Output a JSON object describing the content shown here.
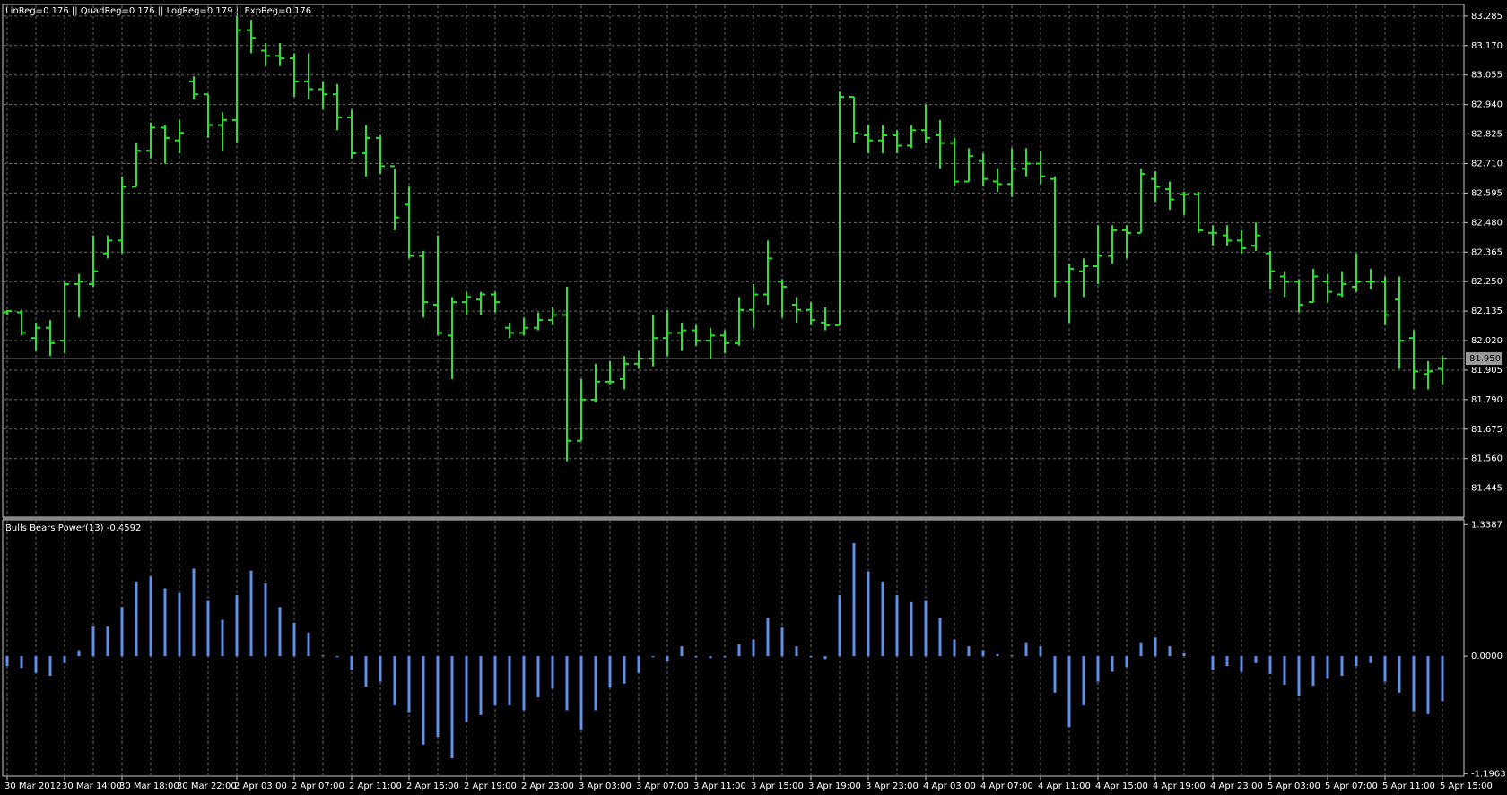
{
  "chart_data": [
    {
      "type": "ohlc",
      "title": "LinReg=0.176 || QuadReg=0.176 || LogReg=0.179 || ExpReg=0.176",
      "categories": [
        "30 Mar 2012",
        null,
        null,
        null,
        "30 Mar 14:00",
        null,
        null,
        null,
        "30 Mar 18:00",
        null,
        null,
        null,
        "30 Mar 22:00",
        null,
        null,
        null,
        "2 Apr 03:00",
        null,
        null,
        null,
        "2 Apr 07:00",
        null,
        null,
        null,
        "2 Apr 11:00",
        null,
        null,
        null,
        "2 Apr 15:00",
        null,
        null,
        null,
        "2 Apr 19:00",
        null,
        null,
        null,
        "2 Apr 23:00",
        null,
        null,
        null,
        "3 Apr 03:00",
        null,
        null,
        null,
        "3 Apr 07:00",
        null,
        null,
        null,
        "3 Apr 11:00",
        null,
        null,
        null,
        "3 Apr 15:00",
        null,
        null,
        null,
        "3 Apr 19:00",
        null,
        null,
        null,
        "3 Apr 23:00",
        null,
        null,
        null,
        "4 Apr 03:00",
        null,
        null,
        null,
        "4 Apr 07:00",
        null,
        null,
        null,
        "4 Apr 11:00",
        null,
        null,
        null,
        "4 Apr 15:00",
        null,
        null,
        null,
        "4 Apr 19:00",
        null,
        null,
        null,
        "4 Apr 23:00",
        null,
        null,
        null,
        "5 Apr 03:00",
        null,
        null,
        null,
        "5 Apr 07:00",
        null,
        null,
        null,
        "5 Apr 11:00",
        null,
        null,
        null,
        "5 Apr 15:00"
      ],
      "open": [
        82.13,
        82.13,
        82.03,
        82.07,
        82.02,
        82.24,
        82.24,
        82.36,
        82.41,
        82.62,
        82.76,
        82.85,
        82.8,
        83.03,
        82.98,
        82.86,
        82.88,
        83.23,
        83.15,
        83.13,
        83.12,
        83.03,
        83.0,
        82.98,
        82.89,
        82.75,
        82.81,
        82.7,
        82.55,
        82.35,
        82.16,
        82.04,
        82.17,
        82.18,
        82.2,
        82.07,
        82.05,
        82.07,
        82.1,
        82.12,
        81.63,
        81.79,
        81.86,
        81.87,
        81.93,
        81.95,
        82.03,
        82.05,
        82.06,
        82.02,
        82.04,
        82.01,
        82.14,
        82.2,
        82.25,
        82.16,
        82.14,
        82.09,
        82.08,
        82.97,
        82.82,
        82.8,
        82.82,
        82.78,
        82.84,
        82.82,
        82.79,
        82.64,
        82.72,
        82.64,
        82.63,
        82.69,
        82.71,
        82.65,
        82.25,
        82.29,
        82.31,
        82.35,
        82.45,
        82.44,
        82.65,
        82.61,
        82.59,
        82.59,
        82.44,
        82.43,
        82.41,
        82.39,
        82.36,
        82.27,
        82.25,
        82.17,
        82.25,
        82.2,
        82.23,
        82.25,
        82.25,
        82.18,
        82.03,
        81.89,
        81.91
      ],
      "high": [
        82.14,
        82.14,
        82.09,
        82.1,
        82.25,
        82.28,
        82.43,
        82.43,
        82.66,
        82.79,
        82.87,
        82.86,
        82.88,
        83.05,
        82.98,
        82.91,
        83.285,
        83.27,
        83.18,
        83.18,
        83.14,
        83.14,
        83.03,
        83.02,
        82.92,
        82.86,
        82.82,
        82.69,
        82.62,
        82.37,
        82.43,
        82.19,
        82.21,
        82.21,
        82.21,
        82.09,
        82.11,
        82.13,
        82.15,
        82.23,
        81.87,
        81.93,
        81.94,
        81.96,
        81.98,
        82.12,
        82.14,
        82.09,
        82.08,
        82.07,
        82.06,
        82.19,
        82.24,
        82.41,
        82.26,
        82.19,
        82.17,
        82.15,
        82.99,
        82.97,
        82.86,
        82.86,
        82.84,
        82.86,
        82.94,
        82.88,
        82.81,
        82.77,
        82.75,
        82.69,
        82.77,
        82.77,
        82.76,
        82.66,
        82.32,
        82.34,
        82.47,
        82.47,
        82.47,
        82.69,
        82.68,
        82.64,
        82.6,
        82.6,
        82.47,
        82.47,
        82.45,
        82.48,
        82.37,
        82.29,
        82.26,
        82.3,
        82.28,
        82.29,
        82.36,
        82.3,
        82.27,
        82.27,
        82.06,
        81.94,
        81.96
      ],
      "low": [
        82.12,
        82.04,
        81.98,
        81.96,
        81.97,
        82.11,
        82.23,
        82.34,
        82.36,
        82.62,
        82.73,
        82.71,
        82.75,
        82.96,
        82.81,
        82.76,
        82.79,
        83.14,
        83.09,
        83.09,
        82.97,
        82.96,
        82.92,
        82.84,
        82.73,
        82.66,
        82.67,
        82.45,
        82.34,
        82.11,
        82.04,
        81.87,
        82.12,
        82.12,
        82.13,
        82.03,
        82.04,
        82.06,
        82.08,
        81.55,
        81.63,
        81.78,
        81.85,
        81.83,
        81.91,
        81.92,
        81.96,
        81.98,
        82.0,
        81.95,
        81.97,
        82.0,
        82.07,
        82.16,
        82.11,
        82.09,
        82.08,
        82.06,
        82.08,
        82.79,
        82.75,
        82.75,
        82.75,
        82.77,
        82.79,
        82.69,
        82.62,
        82.64,
        82.62,
        82.6,
        82.58,
        82.66,
        82.63,
        82.19,
        82.09,
        82.19,
        82.24,
        82.32,
        82.34,
        82.44,
        82.56,
        82.53,
        82.51,
        82.44,
        82.39,
        82.39,
        82.36,
        82.37,
        82.22,
        82.19,
        82.13,
        82.17,
        82.17,
        82.19,
        82.21,
        82.22,
        82.08,
        81.91,
        81.83,
        81.83,
        81.85
      ],
      "close": [
        82.135,
        82.05,
        82.07,
        82.01,
        82.24,
        82.25,
        82.29,
        82.41,
        82.62,
        82.76,
        82.85,
        82.81,
        82.83,
        82.98,
        82.86,
        82.88,
        83.23,
        83.2,
        83.13,
        83.12,
        83.03,
        83.0,
        82.98,
        82.89,
        82.75,
        82.81,
        82.7,
        82.5,
        82.35,
        82.17,
        82.05,
        82.17,
        82.19,
        82.2,
        82.17,
        82.05,
        82.07,
        82.1,
        82.12,
        81.63,
        81.79,
        81.86,
        81.86,
        81.93,
        81.95,
        82.03,
        82.05,
        82.06,
        82.02,
        82.04,
        82.01,
        82.14,
        82.2,
        82.34,
        82.23,
        82.14,
        82.1,
        82.08,
        82.97,
        82.83,
        82.8,
        82.82,
        82.78,
        82.84,
        82.81,
        82.79,
        82.64,
        82.74,
        82.65,
        82.63,
        82.69,
        82.71,
        82.66,
        82.25,
        82.3,
        82.31,
        82.35,
        82.45,
        82.44,
        82.67,
        82.62,
        82.57,
        82.59,
        82.45,
        82.44,
        82.41,
        82.38,
        82.43,
        82.29,
        82.25,
        82.16,
        82.27,
        82.21,
        82.24,
        82.25,
        82.25,
        82.12,
        82.02,
        81.9,
        81.9,
        81.95
      ],
      "color": "#27e627",
      "ylim": [
        81.332,
        83.33
      ],
      "yticks": [
        {
          "value": 83.285,
          "label": "83.285"
        },
        {
          "value": 83.17,
          "label": "83.170"
        },
        {
          "value": 83.055,
          "label": "83.055"
        },
        {
          "value": 82.94,
          "label": "82.940"
        },
        {
          "value": 82.825,
          "label": "82.825"
        },
        {
          "value": 82.71,
          "label": "82.710"
        },
        {
          "value": 82.595,
          "label": "82.595"
        },
        {
          "value": 82.48,
          "label": "82.480"
        },
        {
          "value": 82.365,
          "label": "82.365"
        },
        {
          "value": 82.25,
          "label": "82.250"
        },
        {
          "value": 82.135,
          "label": "82.135"
        },
        {
          "value": 82.02,
          "label": "82.020"
        },
        {
          "value": 81.905,
          "label": "81.905"
        },
        {
          "value": 81.79,
          "label": "81.790"
        },
        {
          "value": 81.675,
          "label": "81.675"
        },
        {
          "value": 81.56,
          "label": "81.560"
        },
        {
          "value": 81.445,
          "label": "81.445"
        }
      ],
      "current_price": {
        "value": 81.95,
        "label": "81.950"
      },
      "grid": true
    },
    {
      "type": "bar",
      "title": "Bulls Bears Power(13) -0.4592",
      "values": [
        -0.1,
        -0.12,
        -0.17,
        -0.2,
        -0.07,
        0.06,
        0.3,
        0.3,
        0.5,
        0.76,
        0.81,
        0.69,
        0.64,
        0.89,
        0.57,
        0.37,
        0.62,
        0.87,
        0.74,
        0.5,
        0.34,
        0.24,
        0.01,
        -0.01,
        -0.14,
        -0.31,
        -0.26,
        -0.5,
        -0.57,
        -0.9,
        -0.82,
        -1.04,
        -0.67,
        -0.6,
        -0.5,
        -0.5,
        -0.55,
        -0.42,
        -0.33,
        -0.55,
        -0.75,
        -0.55,
        -0.32,
        -0.28,
        -0.17,
        -0.01,
        -0.05,
        0.1,
        -0.01,
        -0.02,
        -0.01,
        0.12,
        0.17,
        0.39,
        0.29,
        0.1,
        -0.01,
        -0.03,
        0.62,
        1.15,
        0.86,
        0.76,
        0.62,
        0.55,
        0.57,
        0.39,
        0.17,
        0.1,
        0.06,
        0.02,
        0.01,
        0.14,
        0.1,
        -0.37,
        -0.72,
        -0.5,
        -0.26,
        -0.16,
        -0.11,
        0.14,
        0.19,
        0.1,
        0.03,
        0.0,
        -0.14,
        -0.1,
        -0.16,
        -0.07,
        -0.18,
        -0.29,
        -0.4,
        -0.3,
        -0.23,
        -0.2,
        -0.1,
        -0.07,
        -0.26,
        -0.37,
        -0.56,
        -0.59,
        -0.4592
      ],
      "color": "#5f8fe8",
      "ylim": [
        -1.221,
        1.387
      ],
      "yticks": [
        {
          "value": 1.3387,
          "label": "1.3387"
        },
        {
          "value": 0,
          "label": "0.0000"
        },
        {
          "value": -1.1963,
          "label": "-1.1963"
        }
      ],
      "grid": true
    }
  ]
}
